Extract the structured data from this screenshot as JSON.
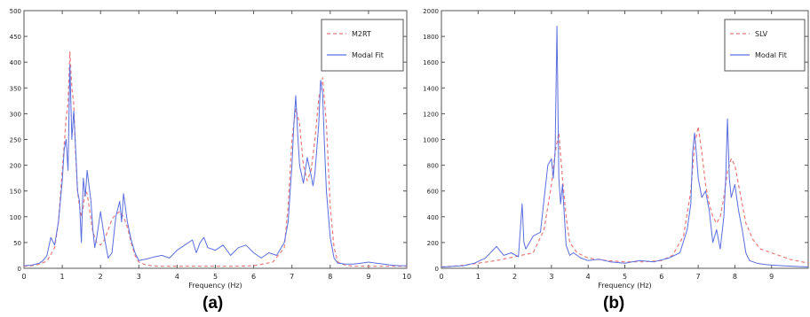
{
  "chart_data": [
    {
      "type": "line",
      "panel_label": "(a)",
      "xlabel": "Frequency (Hz)",
      "ylabel": "",
      "xlim": [
        0,
        10
      ],
      "ylim": [
        0,
        500
      ],
      "xticks": [
        "0",
        "1",
        "2",
        "3",
        "4",
        "5",
        "6",
        "7",
        "8",
        "9",
        "10"
      ],
      "yticks": [
        "0",
        "50",
        "100",
        "150",
        "200",
        "250",
        "300",
        "350",
        "400",
        "450",
        "500"
      ],
      "legend_position": "top-right",
      "series": [
        {
          "name": "M2RT",
          "color": "#e87a7a",
          "style": "dashed",
          "x": [
            0,
            0.2,
            0.4,
            0.6,
            0.8,
            0.9,
            1.0,
            1.05,
            1.1,
            1.15,
            1.2,
            1.25,
            1.3,
            1.35,
            1.4,
            1.45,
            1.5,
            1.55,
            1.6,
            1.65,
            1.7,
            1.75,
            1.8,
            1.9,
            2.0,
            2.1,
            2.2,
            2.3,
            2.4,
            2.5,
            2.6,
            2.7,
            2.8,
            2.9,
            3.0,
            3.2,
            3.5,
            4.0,
            4.5,
            5.0,
            5.5,
            6.0,
            6.5,
            6.8,
            6.9,
            7.0,
            7.1,
            7.2,
            7.3,
            7.4,
            7.5,
            7.6,
            7.7,
            7.8,
            7.9,
            8.0,
            8.1,
            8.2,
            8.4,
            8.6,
            9.0,
            9.5,
            10.0
          ],
          "values": [
            4,
            5,
            8,
            14,
            40,
            90,
            190,
            240,
            290,
            320,
            420,
            350,
            320,
            220,
            150,
            120,
            100,
            120,
            150,
            145,
            120,
            95,
            70,
            50,
            45,
            55,
            75,
            95,
            105,
            110,
            100,
            80,
            50,
            25,
            12,
            6,
            4,
            4,
            4,
            4,
            4,
            5,
            12,
            40,
            120,
            250,
            310,
            280,
            200,
            170,
            190,
            250,
            330,
            370,
            280,
            120,
            40,
            12,
            6,
            4,
            4,
            4,
            4
          ]
        },
        {
          "name": "Modal Fit",
          "color": "#5b6ee0",
          "style": "solid",
          "x": [
            0,
            0.2,
            0.4,
            0.5,
            0.6,
            0.7,
            0.8,
            0.9,
            1.0,
            1.05,
            1.1,
            1.15,
            1.2,
            1.25,
            1.3,
            1.35,
            1.4,
            1.45,
            1.5,
            1.55,
            1.6,
            1.65,
            1.7,
            1.75,
            1.8,
            1.85,
            1.9,
            2.0,
            2.1,
            2.2,
            2.3,
            2.4,
            2.5,
            2.55,
            2.6,
            2.7,
            2.8,
            2.9,
            3.0,
            3.2,
            3.4,
            3.6,
            3.8,
            4.0,
            4.2,
            4.4,
            4.5,
            4.6,
            4.7,
            4.8,
            5.0,
            5.2,
            5.4,
            5.6,
            5.8,
            6.0,
            6.2,
            6.4,
            6.6,
            6.8,
            6.9,
            7.0,
            7.05,
            7.1,
            7.15,
            7.2,
            7.3,
            7.4,
            7.5,
            7.55,
            7.6,
            7.7,
            7.75,
            7.8,
            7.85,
            7.9,
            8.0,
            8.1,
            8.2,
            8.4,
            8.6,
            8.8,
            9.0,
            9.2,
            9.4,
            9.6,
            9.8,
            10.0
          ],
          "values": [
            5,
            6,
            10,
            15,
            25,
            60,
            45,
            90,
            170,
            230,
            250,
            190,
            395,
            250,
            305,
            230,
            150,
            130,
            50,
            175,
            140,
            190,
            160,
            130,
            75,
            40,
            60,
            110,
            60,
            20,
            30,
            100,
            130,
            90,
            145,
            90,
            55,
            30,
            15,
            18,
            22,
            25,
            20,
            35,
            45,
            55,
            30,
            50,
            60,
            40,
            35,
            45,
            25,
            40,
            45,
            30,
            20,
            30,
            25,
            50,
            90,
            200,
            280,
            335,
            260,
            200,
            165,
            215,
            180,
            160,
            185,
            280,
            365,
            340,
            240,
            150,
            60,
            20,
            10,
            8,
            8,
            10,
            12,
            10,
            8,
            6,
            5,
            5
          ]
        }
      ]
    },
    {
      "type": "line",
      "panel_label": "(b)",
      "xlabel": "Frequency (Hz)",
      "ylabel": "",
      "xlim": [
        0,
        10
      ],
      "ylim": [
        0,
        2000
      ],
      "xticks": [
        "0",
        "1",
        "2",
        "3",
        "4",
        "5",
        "6",
        "7",
        "8",
        "9"
      ],
      "yticks": [
        "0",
        "200",
        "400",
        "600",
        "800",
        "1000",
        "1200",
        "1400",
        "1600",
        "1800",
        "2000"
      ],
      "legend_position": "top-right",
      "series": [
        {
          "name": "SLV",
          "color": "#e87a7a",
          "style": "dashed",
          "x": [
            0,
            0.5,
            1.0,
            1.5,
            2.0,
            2.5,
            2.8,
            3.0,
            3.1,
            3.2,
            3.3,
            3.4,
            3.5,
            3.7,
            4.0,
            4.5,
            5.0,
            5.5,
            6.0,
            6.3,
            6.6,
            6.8,
            6.9,
            7.0,
            7.1,
            7.2,
            7.3,
            7.4,
            7.5,
            7.6,
            7.7,
            7.8,
            7.9,
            8.0,
            8.1,
            8.2,
            8.3,
            8.5,
            8.7,
            9.0,
            9.5,
            10.0
          ],
          "values": [
            10,
            20,
            40,
            60,
            90,
            120,
            300,
            650,
            900,
            1050,
            700,
            400,
            200,
            120,
            80,
            60,
            50,
            50,
            60,
            100,
            250,
            600,
            950,
            1100,
            900,
            650,
            500,
            400,
            350,
            400,
            550,
            750,
            850,
            800,
            650,
            500,
            350,
            220,
            150,
            120,
            70,
            40
          ]
        },
        {
          "name": "Modal Fit",
          "color": "#5b6ee0",
          "style": "solid",
          "x": [
            0,
            0.3,
            0.6,
            0.9,
            1.2,
            1.5,
            1.7,
            1.9,
            2.1,
            2.2,
            2.25,
            2.3,
            2.5,
            2.7,
            2.9,
            3.0,
            3.05,
            3.1,
            3.15,
            3.18,
            3.2,
            3.25,
            3.3,
            3.4,
            3.5,
            3.6,
            3.8,
            4.0,
            4.3,
            4.6,
            5.0,
            5.4,
            5.8,
            6.2,
            6.5,
            6.7,
            6.8,
            6.85,
            6.9,
            6.95,
            7.0,
            7.1,
            7.2,
            7.3,
            7.4,
            7.5,
            7.6,
            7.7,
            7.75,
            7.8,
            7.85,
            7.9,
            8.0,
            8.1,
            8.2,
            8.3,
            8.4,
            8.6,
            8.8,
            9.0,
            9.3,
            9.6,
            10.0
          ],
          "values": [
            10,
            15,
            20,
            40,
            80,
            170,
            100,
            120,
            90,
            500,
            200,
            150,
            250,
            280,
            800,
            850,
            700,
            900,
            1880,
            1200,
            700,
            500,
            650,
            180,
            100,
            120,
            80,
            60,
            70,
            50,
            40,
            60,
            50,
            80,
            120,
            300,
            500,
            900,
            1050,
            900,
            700,
            550,
            600,
            450,
            200,
            300,
            150,
            400,
            700,
            1160,
            700,
            550,
            650,
            450,
            300,
            120,
            60,
            40,
            30,
            25,
            20,
            15,
            10
          ]
        }
      ]
    }
  ]
}
